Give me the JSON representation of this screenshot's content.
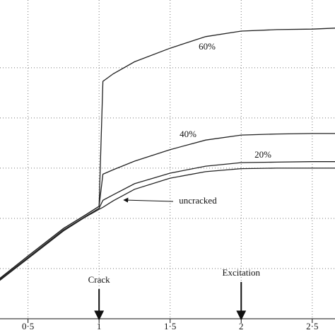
{
  "chart_data": {
    "type": "line",
    "x": [
      0.3,
      0.5,
      0.75,
      0.9,
      1,
      1.027,
      1.1,
      1.25,
      1.5,
      1.75,
      2,
      2.25,
      2.5,
      2.66
    ],
    "series": [
      {
        "name": "60%",
        "color": "#222222",
        "values": [
          0.8,
          1.25,
          1.8,
          2.06,
          2.24,
          4.73,
          4.88,
          5.12,
          5.39,
          5.62,
          5.73,
          5.76,
          5.77,
          5.79
        ]
      },
      {
        "name": "40%",
        "color": "#222222",
        "values": [
          0.8,
          1.25,
          1.8,
          2.06,
          2.24,
          2.88,
          2.97,
          3.14,
          3.37,
          3.56,
          3.66,
          3.68,
          3.69,
          3.69
        ]
      },
      {
        "name": "20%",
        "color": "#222222",
        "values": [
          0.78,
          1.22,
          1.77,
          2.03,
          2.2,
          2.36,
          2.47,
          2.69,
          2.9,
          3.04,
          3.11,
          3.12,
          3.13,
          3.13
        ]
      },
      {
        "name": "uncracked",
        "color": "#222222",
        "values": [
          0.76,
          1.2,
          1.75,
          2.02,
          2.18,
          2.22,
          2.35,
          2.58,
          2.8,
          2.93,
          2.99,
          3.0,
          3.0,
          3.0
        ]
      }
    ],
    "xlim": [
      0.303,
      2.66
    ],
    "xticks": [
      {
        "value": 0.5,
        "label": "0·5"
      },
      1,
      {
        "value": 1.5,
        "label": "1·5"
      },
      2,
      {
        "value": 2.5,
        "label": "2·5"
      }
    ],
    "ylim": [
      0,
      6.35
    ],
    "yticks": [
      1,
      2,
      3,
      4,
      5
    ],
    "grid": true,
    "annotations": [
      {
        "text": "Crack",
        "x": 1
      },
      {
        "text": "Excitation",
        "x": 2
      }
    ]
  }
}
